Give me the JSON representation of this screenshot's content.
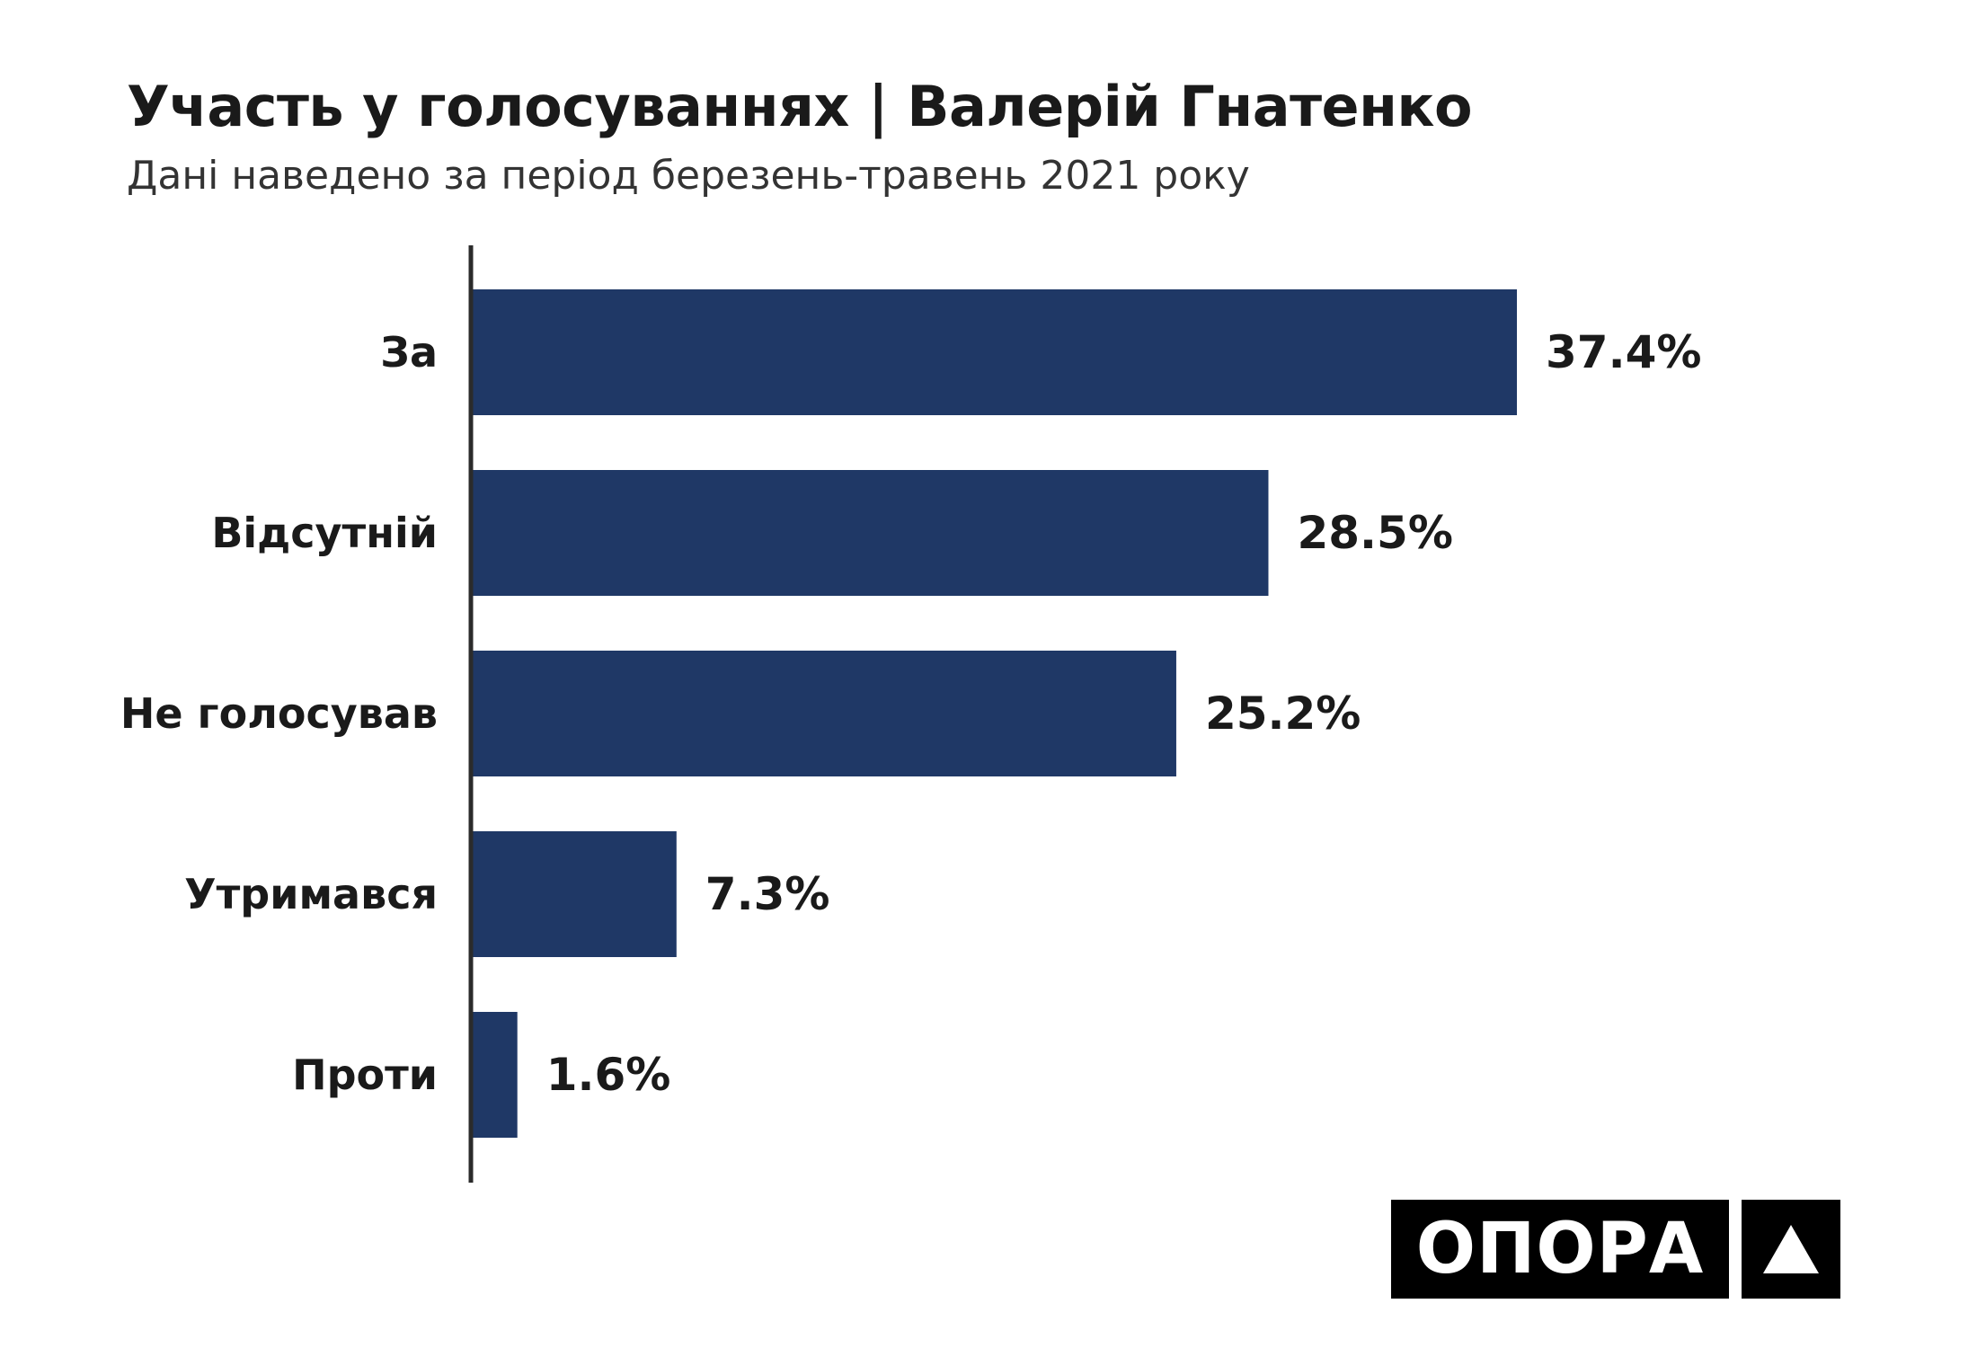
{
  "chart_data": {
    "type": "bar",
    "orientation": "horizontal",
    "title": "Участь у голосуваннях | Валерій Гнатенко",
    "subtitle": "Дані наведено за період березень-травень 2021 року",
    "categories": [
      "За",
      "Відсутній",
      "Не голосував",
      "Утримався",
      "Проти"
    ],
    "values": [
      37.4,
      28.5,
      25.2,
      7.3,
      1.6
    ],
    "value_labels": [
      "37.4%",
      "28.5%",
      "25.2%",
      "7.3%",
      "1.6%"
    ],
    "unit": "%",
    "xlim": [
      0,
      37.4
    ],
    "grid": false,
    "bar_color": "#1f3866",
    "label_color": "#1a1a1a"
  },
  "branding": {
    "logo_text": "ОПОРА"
  },
  "icons": {
    "logo_mark": "triangle-icon"
  }
}
